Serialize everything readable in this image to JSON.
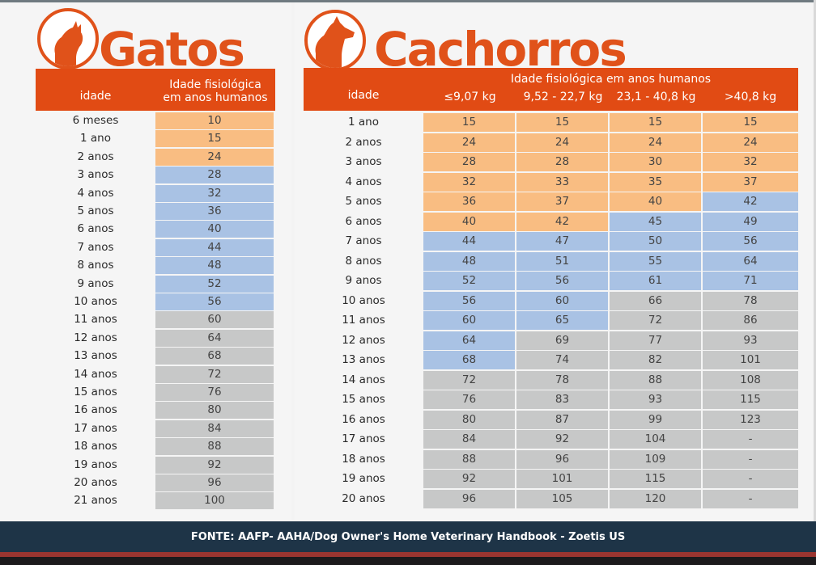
{
  "cats": {
    "title": "Gatos",
    "header": {
      "age_label": "idade",
      "value_label_line1": "Idade fisiológica",
      "value_label_line2": "em anos humanos"
    },
    "rows": [
      {
        "age": "6 meses",
        "value": "10",
        "color": "orange"
      },
      {
        "age": "1 ano",
        "value": "15",
        "color": "orange"
      },
      {
        "age": "2 anos",
        "value": "24",
        "color": "orange"
      },
      {
        "age": "3 anos",
        "value": "28",
        "color": "blue"
      },
      {
        "age": "4 anos",
        "value": "32",
        "color": "blue"
      },
      {
        "age": "5 anos",
        "value": "36",
        "color": "blue"
      },
      {
        "age": "6 anos",
        "value": "40",
        "color": "blue"
      },
      {
        "age": "7 anos",
        "value": "44",
        "color": "blue"
      },
      {
        "age": "8 anos",
        "value": "48",
        "color": "blue"
      },
      {
        "age": "9 anos",
        "value": "52",
        "color": "blue"
      },
      {
        "age": "10 anos",
        "value": "56",
        "color": "blue"
      },
      {
        "age": "11 anos",
        "value": "60",
        "color": "gray"
      },
      {
        "age": "12 anos",
        "value": "64",
        "color": "gray"
      },
      {
        "age": "13 anos",
        "value": "68",
        "color": "gray"
      },
      {
        "age": "14 anos",
        "value": "72",
        "color": "gray"
      },
      {
        "age": "15 anos",
        "value": "76",
        "color": "gray"
      },
      {
        "age": "16 anos",
        "value": "80",
        "color": "gray"
      },
      {
        "age": "17 anos",
        "value": "84",
        "color": "gray"
      },
      {
        "age": "18 anos",
        "value": "88",
        "color": "gray"
      },
      {
        "age": "19 anos",
        "value": "92",
        "color": "gray"
      },
      {
        "age": "20 anos",
        "value": "96",
        "color": "gray"
      },
      {
        "age": "21 anos",
        "value": "100",
        "color": "gray"
      }
    ]
  },
  "dogs": {
    "title": "Cachorros",
    "header": {
      "age_label": "idade",
      "group_label": "Idade fisiológica  em anos humanos",
      "columns": [
        "≤9,07 kg",
        "9,52 - 22,7 kg",
        "23,1 - 40,8 kg",
        ">40,8 kg"
      ]
    },
    "rows": [
      {
        "age": "1 ano",
        "values": [
          "15",
          "15",
          "15",
          "15"
        ],
        "colors": [
          "orange",
          "orange",
          "orange",
          "orange"
        ]
      },
      {
        "age": "2 anos",
        "values": [
          "24",
          "24",
          "24",
          "24"
        ],
        "colors": [
          "orange",
          "orange",
          "orange",
          "orange"
        ]
      },
      {
        "age": "3 anos",
        "values": [
          "28",
          "28",
          "30",
          "32"
        ],
        "colors": [
          "orange",
          "orange",
          "orange",
          "orange"
        ]
      },
      {
        "age": "4 anos",
        "values": [
          "32",
          "33",
          "35",
          "37"
        ],
        "colors": [
          "orange",
          "orange",
          "orange",
          "orange"
        ]
      },
      {
        "age": "5 anos",
        "values": [
          "36",
          "37",
          "40",
          "42"
        ],
        "colors": [
          "orange",
          "orange",
          "orange",
          "blue"
        ]
      },
      {
        "age": "6 anos",
        "values": [
          "40",
          "42",
          "45",
          "49"
        ],
        "colors": [
          "orange",
          "orange",
          "blue",
          "blue"
        ]
      },
      {
        "age": "7 anos",
        "values": [
          "44",
          "47",
          "50",
          "56"
        ],
        "colors": [
          "blue",
          "blue",
          "blue",
          "blue"
        ]
      },
      {
        "age": "8 anos",
        "values": [
          "48",
          "51",
          "55",
          "64"
        ],
        "colors": [
          "blue",
          "blue",
          "blue",
          "blue"
        ]
      },
      {
        "age": "9 anos",
        "values": [
          "52",
          "56",
          "61",
          "71"
        ],
        "colors": [
          "blue",
          "blue",
          "blue",
          "blue"
        ]
      },
      {
        "age": "10 anos",
        "values": [
          "56",
          "60",
          "66",
          "78"
        ],
        "colors": [
          "blue",
          "blue",
          "gray",
          "gray"
        ]
      },
      {
        "age": "11 anos",
        "values": [
          "60",
          "65",
          "72",
          "86"
        ],
        "colors": [
          "blue",
          "blue",
          "gray",
          "gray"
        ]
      },
      {
        "age": "12 anos",
        "values": [
          "64",
          "69",
          "77",
          "93"
        ],
        "colors": [
          "blue",
          "gray",
          "gray",
          "gray"
        ]
      },
      {
        "age": "13 anos",
        "values": [
          "68",
          "74",
          "82",
          "101"
        ],
        "colors": [
          "blue",
          "gray",
          "gray",
          "gray"
        ]
      },
      {
        "age": "14 anos",
        "values": [
          "72",
          "78",
          "88",
          "108"
        ],
        "colors": [
          "gray",
          "gray",
          "gray",
          "gray"
        ]
      },
      {
        "age": "15 anos",
        "values": [
          "76",
          "83",
          "93",
          "115"
        ],
        "colors": [
          "gray",
          "gray",
          "gray",
          "gray"
        ]
      },
      {
        "age": "16 anos",
        "values": [
          "80",
          "87",
          "99",
          "123"
        ],
        "colors": [
          "gray",
          "gray",
          "gray",
          "gray"
        ]
      },
      {
        "age": "17 anos",
        "values": [
          "84",
          "92",
          "104",
          "-"
        ],
        "colors": [
          "gray",
          "gray",
          "gray",
          "gray"
        ]
      },
      {
        "age": "18 anos",
        "values": [
          "88",
          "96",
          "109",
          "-"
        ],
        "colors": [
          "gray",
          "gray",
          "gray",
          "gray"
        ]
      },
      {
        "age": "19 anos",
        "values": [
          "92",
          "101",
          "115",
          "-"
        ],
        "colors": [
          "gray",
          "gray",
          "gray",
          "gray"
        ]
      },
      {
        "age": "20 anos",
        "values": [
          "96",
          "105",
          "120",
          "-"
        ],
        "colors": [
          "gray",
          "gray",
          "gray",
          "gray"
        ]
      }
    ]
  },
  "footer": {
    "source": "FONTE: AAFP- AAHA/Dog Owner's Home Veterinary Handbook - Zoetis US"
  },
  "colors": {
    "brand_orange": "#e14b14",
    "young": "#f9bd82",
    "adult": "#a9c2e4",
    "senior": "#c7c8c8",
    "footer_bg": "#1e3447"
  }
}
